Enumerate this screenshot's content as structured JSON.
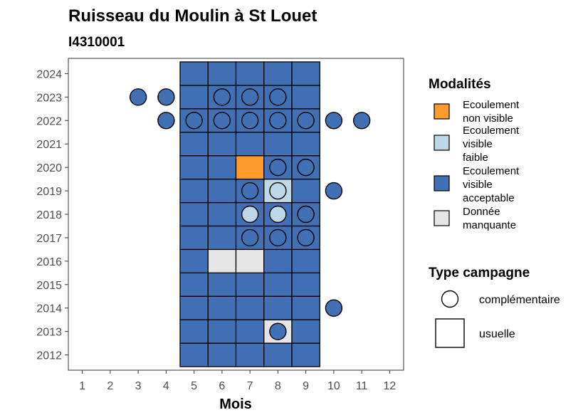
{
  "chart_data": {
    "type": "heatmap",
    "title": "Ruisseau du Moulin à St Louet",
    "subtitle": "I4310001",
    "xlabel": "Mois",
    "ylabel": "",
    "x_ticks": [
      1,
      2,
      3,
      4,
      5,
      6,
      7,
      8,
      9,
      10,
      11,
      12
    ],
    "y_ticks": [
      2012,
      2013,
      2014,
      2015,
      2016,
      2017,
      2018,
      2019,
      2020,
      2021,
      2022,
      2023,
      2024
    ],
    "xlim": [
      0.5,
      12.5
    ],
    "ylim": [
      2011.35,
      2024.65
    ],
    "grid": false,
    "legend_position": "right",
    "modalites": {
      "title": "Modalités",
      "items": [
        {
          "key": "orange",
          "label_lines": [
            "Ecoulement",
            "non visible"
          ],
          "color": "#FF9A2E"
        },
        {
          "key": "light",
          "label_lines": [
            "Ecoulement",
            "visible",
            "faible"
          ],
          "color": "#BFD8E8"
        },
        {
          "key": "blue",
          "label_lines": [
            "Ecoulement",
            "visible",
            "acceptable"
          ],
          "color": "#4270B5"
        },
        {
          "key": "grey",
          "label_lines": [
            "Donnée",
            "manquante"
          ],
          "color": "#E5E5E5"
        }
      ]
    },
    "campagne": {
      "title": "Type campagne",
      "items": [
        {
          "key": "circle",
          "label": "complémentaire"
        },
        {
          "key": "square",
          "label": "usuelle"
        }
      ]
    },
    "usuelle_default": {
      "value": "blue",
      "months": [
        5,
        6,
        7,
        8,
        9
      ],
      "years": [
        2012,
        2024
      ]
    },
    "usuelle_overrides": [
      {
        "month": 7,
        "year": 2020,
        "value": "orange"
      },
      {
        "month": 8,
        "year": 2019,
        "value": "light"
      },
      {
        "month": 6,
        "year": 2016,
        "value": "grey"
      },
      {
        "month": 7,
        "year": 2016,
        "value": "grey"
      },
      {
        "month": 8,
        "year": 2013,
        "value": "grey"
      }
    ],
    "complementaire": [
      {
        "month": 3,
        "year": 2023,
        "value": "blue"
      },
      {
        "month": 4,
        "year": 2023,
        "value": "blue"
      },
      {
        "month": 6,
        "year": 2023,
        "value": "blue"
      },
      {
        "month": 7,
        "year": 2023,
        "value": "blue"
      },
      {
        "month": 8,
        "year": 2023,
        "value": "blue"
      },
      {
        "month": 4,
        "year": 2022,
        "value": "blue"
      },
      {
        "month": 5,
        "year": 2022,
        "value": "blue"
      },
      {
        "month": 6,
        "year": 2022,
        "value": "blue"
      },
      {
        "month": 7,
        "year": 2022,
        "value": "blue"
      },
      {
        "month": 8,
        "year": 2022,
        "value": "blue"
      },
      {
        "month": 9,
        "year": 2022,
        "value": "blue"
      },
      {
        "month": 10,
        "year": 2022,
        "value": "blue"
      },
      {
        "month": 11,
        "year": 2022,
        "value": "blue"
      },
      {
        "month": 8,
        "year": 2020,
        "value": "blue"
      },
      {
        "month": 9,
        "year": 2020,
        "value": "blue"
      },
      {
        "month": 7,
        "year": 2019,
        "value": "blue"
      },
      {
        "month": 8,
        "year": 2019,
        "value": "light"
      },
      {
        "month": 10,
        "year": 2019,
        "value": "blue"
      },
      {
        "month": 7,
        "year": 2018,
        "value": "light"
      },
      {
        "month": 8,
        "year": 2018,
        "value": "light"
      },
      {
        "month": 9,
        "year": 2018,
        "value": "blue"
      },
      {
        "month": 7,
        "year": 2017,
        "value": "blue"
      },
      {
        "month": 8,
        "year": 2017,
        "value": "blue"
      },
      {
        "month": 9,
        "year": 2017,
        "value": "blue"
      },
      {
        "month": 10,
        "year": 2014,
        "value": "blue"
      },
      {
        "month": 8,
        "year": 2013,
        "value": "blue"
      }
    ]
  }
}
